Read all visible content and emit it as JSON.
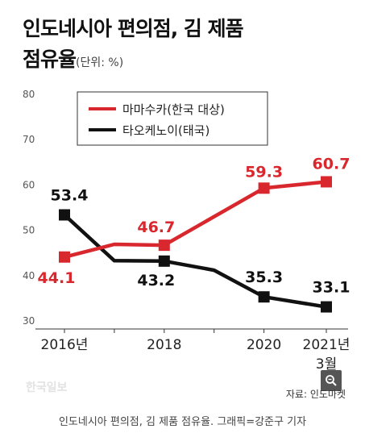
{
  "title_line1": "인도네시아 편의점, 김 제품",
  "title_line2": "점유율",
  "unit": "(단위: %)",
  "source": "자료: 인도마켓",
  "watermark": "한국일보",
  "caption": "인도네시아 편의점, 김 제품 점유율. 그래픽=강준구 기자",
  "colors": {
    "red": "#d9272e",
    "black": "#111111"
  },
  "zoom_icon": "zoom-in-icon",
  "chart_data": {
    "type": "line",
    "title": "인도네시아 편의점, 김 제품 점유율",
    "ylim": [
      30,
      80
    ],
    "yticks": [
      "80",
      "70",
      "60",
      "50",
      "40",
      "30"
    ],
    "xtick_labels": [
      "2016년",
      "2018",
      "2020",
      "2021년\n3월"
    ],
    "grid": false,
    "legend_placement": "top-right",
    "series": [
      {
        "name": "마마수카(한국 대상)",
        "color": "#d9272e",
        "points": [
          {
            "x": 2016.0,
            "y": 44.1,
            "label": "44.1"
          },
          {
            "x": 2017.0,
            "y": 46.9
          },
          {
            "x": 2018.0,
            "y": 46.7,
            "label": "46.7"
          },
          {
            "x": 2020.0,
            "y": 59.3,
            "label": "59.3"
          },
          {
            "x": 2021.25,
            "y": 60.7,
            "label": "60.7"
          }
        ]
      },
      {
        "name": "타오케노이(태국)",
        "color": "#111111",
        "points": [
          {
            "x": 2016.0,
            "y": 53.4,
            "label": "53.4"
          },
          {
            "x": 2017.0,
            "y": 43.3
          },
          {
            "x": 2018.0,
            "y": 43.2,
            "label": "43.2"
          },
          {
            "x": 2019.0,
            "y": 41.2
          },
          {
            "x": 2020.0,
            "y": 35.3,
            "label": "35.3"
          },
          {
            "x": 2021.25,
            "y": 33.1,
            "label": "33.1"
          }
        ]
      }
    ]
  }
}
